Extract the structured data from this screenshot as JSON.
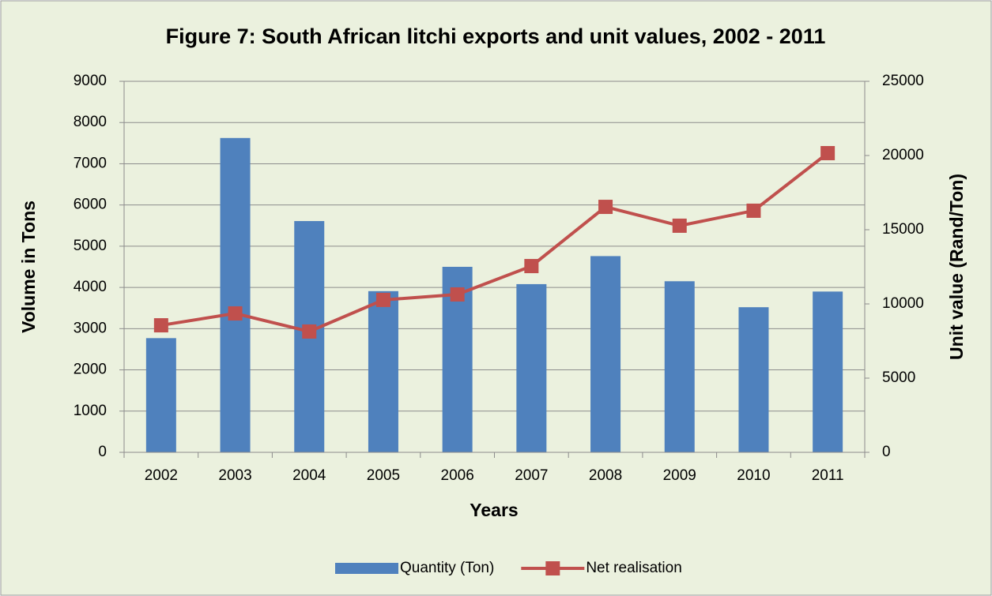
{
  "chart_data": {
    "type": "bar_line",
    "title": "Figure 7: South African litchi exports and unit values, 2002 - 2011",
    "x_label": "Years",
    "y_label": "Volume in Tons",
    "y2_label": "Unit value (Rand/Ton)",
    "categories": [
      "2002",
      "2003",
      "2004",
      "2005",
      "2006",
      "2007",
      "2008",
      "2009",
      "2010",
      "2011"
    ],
    "series": [
      {
        "name": "Quantity (Ton)",
        "type": "bar",
        "color": "#4f81bd",
        "values": [
          2770,
          7625,
          5610,
          3910,
          4500,
          4080,
          4760,
          4150,
          3520,
          3900
        ]
      },
      {
        "name": "Net realisation",
        "type": "line",
        "axis": "y2",
        "color": "#c0504d",
        "values": [
          8560,
          9360,
          8140,
          10270,
          10640,
          12550,
          16540,
          15270,
          16280,
          20160
        ]
      }
    ],
    "ylim": [
      0,
      9000
    ],
    "yticks": [
      0,
      1000,
      2000,
      3000,
      4000,
      5000,
      6000,
      7000,
      8000,
      9000
    ],
    "y2lim": [
      0,
      25000
    ],
    "y2ticks": [
      0,
      5000,
      10000,
      15000,
      20000,
      25000
    ],
    "grid": true,
    "legend": "bottom"
  }
}
